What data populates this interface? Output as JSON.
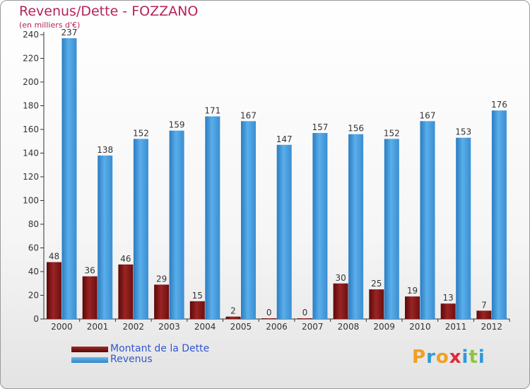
{
  "chart_data": {
    "type": "bar",
    "title": "Revenus/Dette - FOZZANO",
    "ylabel": "(en milliers d'€)",
    "xlabel": "",
    "categories": [
      "2000",
      "2001",
      "2002",
      "2003",
      "2004",
      "2005",
      "2006",
      "2007",
      "2008",
      "2009",
      "2010",
      "2011",
      "2012"
    ],
    "series": [
      {
        "name": "Montant de la Dette",
        "color": "#7a1414",
        "values": [
          48,
          36,
          46,
          29,
          15,
          2,
          0,
          0,
          30,
          25,
          19,
          13,
          7
        ]
      },
      {
        "name": "Revenus",
        "color": "#4a9fe0",
        "values": [
          237,
          138,
          152,
          159,
          171,
          167,
          147,
          157,
          156,
          152,
          167,
          153,
          176
        ]
      }
    ],
    "ylim": [
      0,
      240
    ],
    "yticks": [
      0,
      20,
      40,
      60,
      80,
      100,
      120,
      140,
      160,
      180,
      200,
      220,
      240
    ],
    "grid": false,
    "legend": "bottom-left"
  },
  "brand": {
    "letters": [
      "P",
      "r",
      "o",
      "x",
      "i",
      "t",
      "i"
    ],
    "colors": [
      "#f0a020",
      "#2f9ad8",
      "#f0a020",
      "#e02a3a",
      "#2f9ad8",
      "#8cc63f",
      "#2f9ad8"
    ]
  }
}
